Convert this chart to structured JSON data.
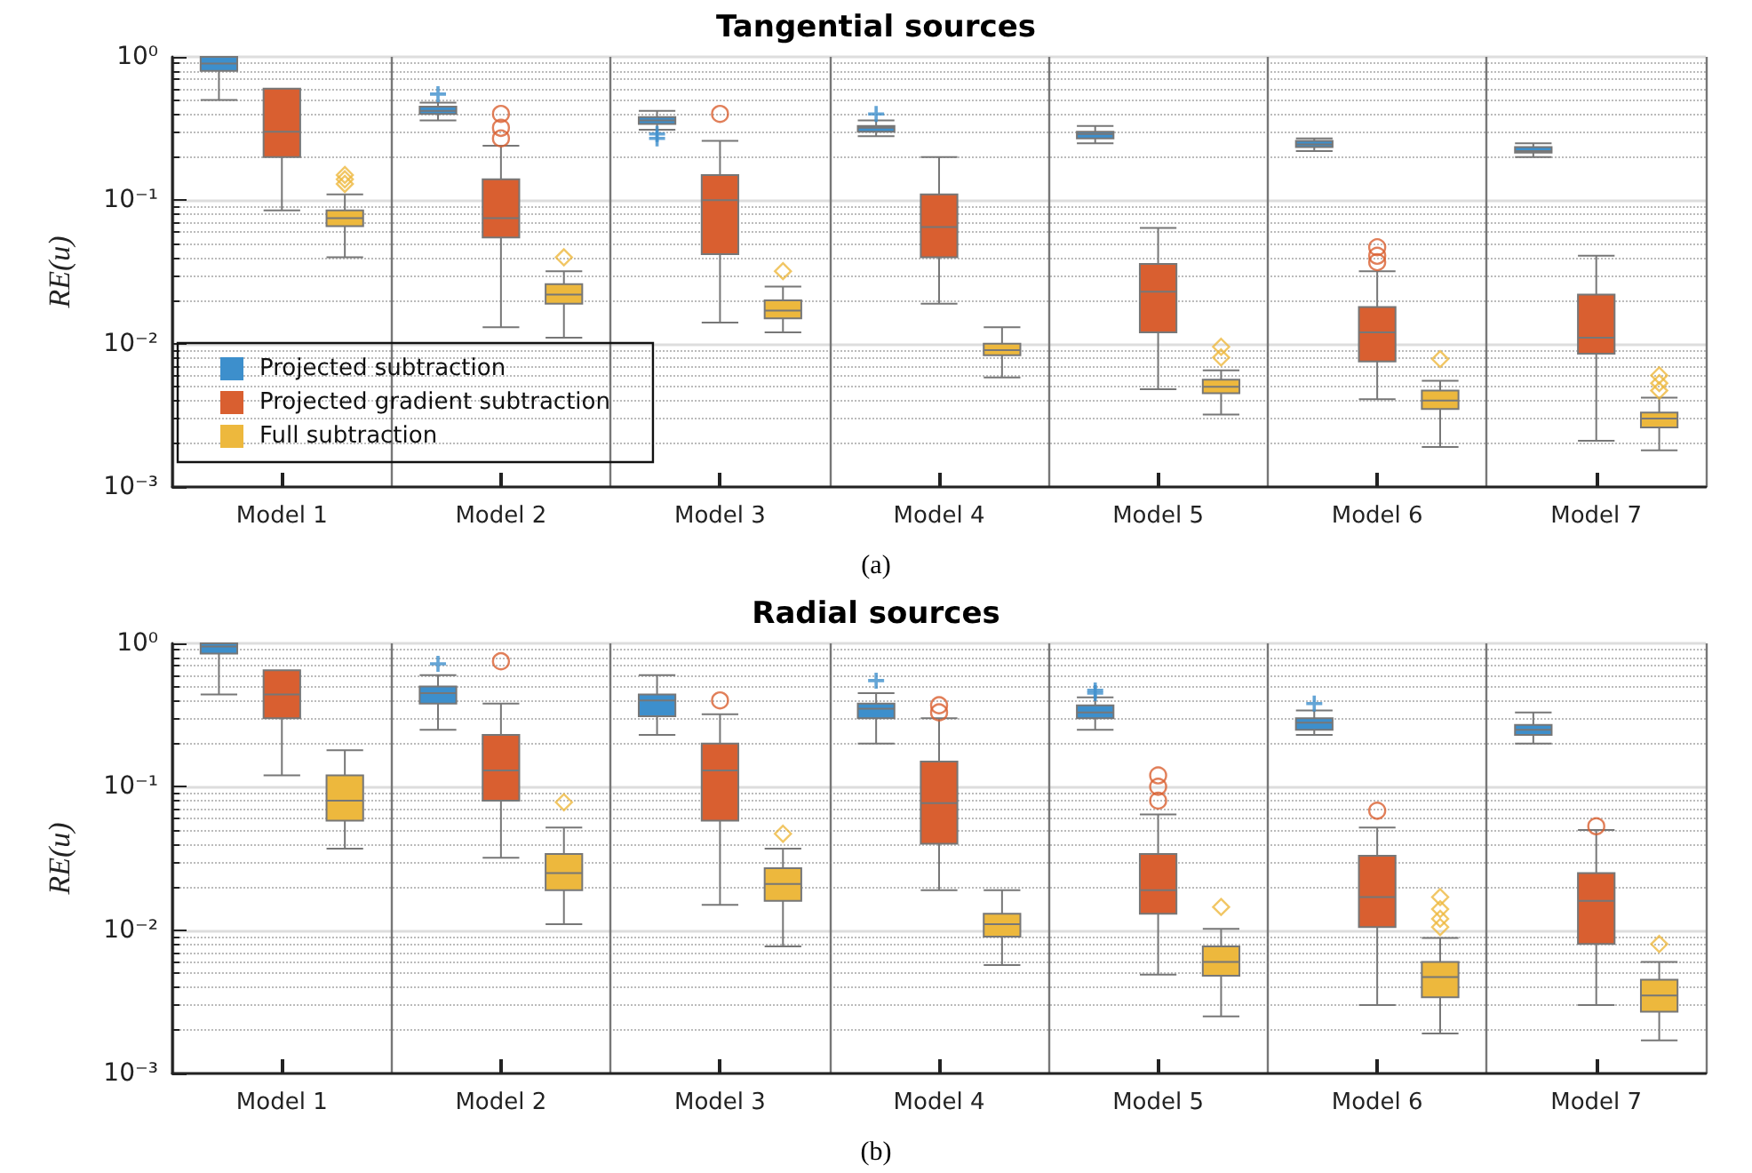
{
  "chart_data": [
    {
      "type": "box",
      "title": "Tangential sources",
      "ylabel": "RE(u)",
      "annotations": [
        "(a)"
      ],
      "categories": [
        "Model 1",
        "Model 2",
        "Model 3",
        "Model 4",
        "Model 5",
        "Model 6",
        "Model 7"
      ],
      "log": true,
      "ylim": [
        0.001,
        1
      ],
      "yticks": [
        {
          "value": 0.001,
          "label": "10⁻³"
        },
        {
          "value": 0.01,
          "label": "10⁻²"
        },
        {
          "value": 0.1,
          "label": "10⁻¹"
        },
        {
          "value": 1,
          "label": "10⁰"
        }
      ],
      "grid": true,
      "legend": "bottom left",
      "series": [
        {
          "name": "Projected subtraction",
          "color": "#3d8fcc",
          "marker": "cross",
          "boxes": [
            {
              "low": 0.5,
              "q1": 0.8,
              "median": 0.9,
              "q3": 1,
              "high": 1
            },
            {
              "low": 0.36,
              "q1": 0.4,
              "median": 0.42,
              "q3": 0.45,
              "high": 0.48,
              "outliers": [
                0.55
              ]
            },
            {
              "low": 0.31,
              "q1": 0.34,
              "median": 0.36,
              "q3": 0.38,
              "high": 0.42,
              "outliers": [
                0.27,
                0.29
              ]
            },
            {
              "low": 0.28,
              "q1": 0.3,
              "median": 0.32,
              "q3": 0.33,
              "high": 0.36,
              "outliers": [
                0.4
              ]
            },
            {
              "low": 0.25,
              "q1": 0.27,
              "median": 0.29,
              "q3": 0.3,
              "high": 0.33
            },
            {
              "low": 0.22,
              "q1": 0.235,
              "median": 0.245,
              "q3": 0.26,
              "high": 0.27
            },
            {
              "low": 0.2,
              "q1": 0.215,
              "median": 0.22,
              "q3": 0.235,
              "high": 0.25
            }
          ]
        },
        {
          "name": "Projected gradient subtraction",
          "color": "#d95f30",
          "marker": "circle",
          "boxes": [
            {
              "low": 0.085,
              "q1": 0.2,
              "median": 0.3,
              "q3": 0.6,
              "high": 0.6
            },
            {
              "low": 0.013,
              "q1": 0.055,
              "median": 0.075,
              "q3": 0.14,
              "high": 0.24,
              "outliers": [
                0.27,
                0.32,
                0.4
              ]
            },
            {
              "low": 0.014,
              "q1": 0.042,
              "median": 0.1,
              "q3": 0.15,
              "high": 0.26,
              "outliers": [
                0.4
              ]
            },
            {
              "low": 0.019,
              "q1": 0.04,
              "median": 0.065,
              "q3": 0.11,
              "high": 0.2
            },
            {
              "low": 0.0048,
              "q1": 0.012,
              "median": 0.023,
              "q3": 0.036,
              "high": 0.064
            },
            {
              "low": 0.0041,
              "q1": 0.0075,
              "median": 0.012,
              "q3": 0.018,
              "high": 0.032,
              "outliers": [
                0.037,
                0.041,
                0.047
              ]
            },
            {
              "low": 0.0021,
              "q1": 0.0085,
              "median": 0.011,
              "q3": 0.022,
              "high": 0.041
            }
          ]
        },
        {
          "name": "Full subtraction",
          "color": "#edb83d",
          "marker": "diamond",
          "boxes": [
            {
              "low": 0.04,
              "q1": 0.066,
              "median": 0.075,
              "q3": 0.085,
              "high": 0.11,
              "outliers": [
                0.13,
                0.14,
                0.15
              ]
            },
            {
              "low": 0.011,
              "q1": 0.019,
              "median": 0.022,
              "q3": 0.026,
              "high": 0.032,
              "outliers": [
                0.04
              ]
            },
            {
              "low": 0.012,
              "q1": 0.015,
              "median": 0.017,
              "q3": 0.02,
              "high": 0.025,
              "outliers": [
                0.032
              ]
            },
            {
              "low": 0.0058,
              "q1": 0.0083,
              "median": 0.009,
              "q3": 0.01,
              "high": 0.013
            },
            {
              "low": 0.0032,
              "q1": 0.0045,
              "median": 0.005,
              "q3": 0.0056,
              "high": 0.0065,
              "outliers": [
                0.008,
                0.0095
              ]
            },
            {
              "low": 0.0019,
              "q1": 0.0035,
              "median": 0.004,
              "q3": 0.0047,
              "high": 0.0055,
              "outliers": [
                0.0078
              ]
            },
            {
              "low": 0.0018,
              "q1": 0.0026,
              "median": 0.003,
              "q3": 0.0033,
              "high": 0.0042,
              "outliers": [
                0.0047,
                0.0053,
                0.006
              ]
            }
          ]
        }
      ]
    },
    {
      "type": "box",
      "title": "Radial sources",
      "ylabel": "RE(u)",
      "annotations": [
        "(b)"
      ],
      "categories": [
        "Model 1",
        "Model 2",
        "Model 3",
        "Model 4",
        "Model 5",
        "Model 6",
        "Model 7"
      ],
      "log": true,
      "ylim": [
        0.001,
        1
      ],
      "yticks": [
        {
          "value": 0.001,
          "label": "10⁻³"
        },
        {
          "value": 0.01,
          "label": "10⁻²"
        },
        {
          "value": 0.1,
          "label": "10⁻¹"
        },
        {
          "value": 1,
          "label": "10⁰"
        }
      ],
      "grid": true,
      "series": [
        {
          "color": "#3d8fcc",
          "marker": "cross",
          "boxes": [
            {
              "low": 0.44,
              "q1": 0.85,
              "median": 0.95,
              "q3": 1,
              "high": 1
            },
            {
              "low": 0.25,
              "q1": 0.38,
              "median": 0.45,
              "q3": 0.5,
              "high": 0.6,
              "outliers": [
                0.72
              ]
            },
            {
              "low": 0.23,
              "q1": 0.31,
              "median": 0.4,
              "q3": 0.44,
              "high": 0.6
            },
            {
              "low": 0.2,
              "q1": 0.3,
              "median": 0.35,
              "q3": 0.38,
              "high": 0.45,
              "outliers": [
                0.55
              ]
            },
            {
              "low": 0.25,
              "q1": 0.3,
              "median": 0.33,
              "q3": 0.37,
              "high": 0.42,
              "outliers": [
                0.45,
                0.47
              ]
            },
            {
              "low": 0.23,
              "q1": 0.25,
              "median": 0.28,
              "q3": 0.3,
              "high": 0.34,
              "outliers": [
                0.38
              ]
            },
            {
              "low": 0.2,
              "q1": 0.23,
              "median": 0.25,
              "q3": 0.27,
              "high": 0.33
            }
          ]
        },
        {
          "color": "#d95f30",
          "marker": "circle",
          "boxes": [
            {
              "low": 0.12,
              "q1": 0.3,
              "median": 0.44,
              "q3": 0.65,
              "high": 0.65
            },
            {
              "low": 0.032,
              "q1": 0.08,
              "median": 0.13,
              "q3": 0.23,
              "high": 0.38,
              "outliers": [
                0.75
              ]
            },
            {
              "low": 0.015,
              "q1": 0.058,
              "median": 0.13,
              "q3": 0.2,
              "high": 0.32,
              "outliers": [
                0.4
              ]
            },
            {
              "low": 0.019,
              "q1": 0.04,
              "median": 0.077,
              "q3": 0.15,
              "high": 0.3,
              "outliers": [
                0.33,
                0.37
              ]
            },
            {
              "low": 0.0049,
              "q1": 0.013,
              "median": 0.019,
              "q3": 0.034,
              "high": 0.064,
              "outliers": [
                0.08,
                0.1,
                0.12
              ]
            },
            {
              "low": 0.003,
              "q1": 0.0105,
              "median": 0.017,
              "q3": 0.033,
              "high": 0.052,
              "outliers": [
                0.068
              ]
            },
            {
              "low": 0.003,
              "q1": 0.008,
              "median": 0.016,
              "q3": 0.025,
              "high": 0.05,
              "outliers": [
                0.053
              ]
            }
          ]
        },
        {
          "color": "#edb83d",
          "marker": "diamond",
          "boxes": [
            {
              "low": 0.037,
              "q1": 0.058,
              "median": 0.08,
              "q3": 0.12,
              "high": 0.18
            },
            {
              "low": 0.011,
              "q1": 0.019,
              "median": 0.025,
              "q3": 0.034,
              "high": 0.052,
              "outliers": [
                0.078
              ]
            },
            {
              "low": 0.0077,
              "q1": 0.016,
              "median": 0.021,
              "q3": 0.027,
              "high": 0.037,
              "outliers": [
                0.047
              ]
            },
            {
              "low": 0.0057,
              "q1": 0.009,
              "median": 0.011,
              "q3": 0.013,
              "high": 0.019
            },
            {
              "low": 0.0025,
              "q1": 0.0048,
              "median": 0.006,
              "q3": 0.0077,
              "high": 0.0102,
              "outliers": [
                0.0145
              ]
            },
            {
              "low": 0.0019,
              "q1": 0.0034,
              "median": 0.0047,
              "q3": 0.006,
              "high": 0.0088,
              "outliers": [
                0.0105,
                0.012,
                0.014,
                0.017
              ]
            },
            {
              "low": 0.0017,
              "q1": 0.0027,
              "median": 0.0035,
              "q3": 0.0045,
              "high": 0.006,
              "outliers": [
                0.008
              ]
            }
          ]
        }
      ]
    }
  ]
}
